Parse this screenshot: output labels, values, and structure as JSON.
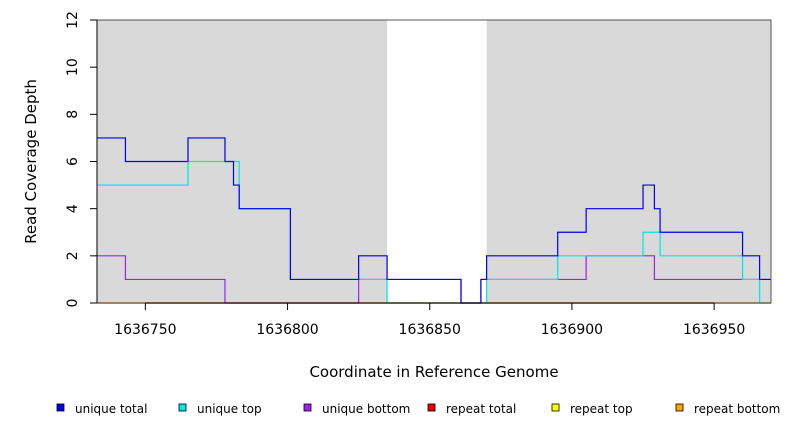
{
  "chart_data": {
    "type": "line",
    "step": true,
    "xlabel": "Coordinate in Reference Genome",
    "ylabel": "Read Coverage Depth",
    "xlim": [
      1636733,
      1636970
    ],
    "ylim": [
      0,
      12
    ],
    "x_ticks": [
      1636750,
      1636800,
      1636850,
      1636900,
      1636950
    ],
    "x_tick_labels": [
      "1636750",
      "1636800",
      "1636850",
      "1636900",
      "1636950"
    ],
    "y_ticks": [
      0,
      2,
      4,
      6,
      8,
      10,
      12
    ],
    "y_tick_labels": [
      "0",
      "2",
      "4",
      "6",
      "8",
      "10",
      "12"
    ],
    "shaded_regions": [
      {
        "x0": 1636733,
        "x1": 1636835
      },
      {
        "x0": 1636870,
        "x1": 1636970
      }
    ],
    "shade_color": "#d9d9d9",
    "grid": false,
    "legend_position": "bottom",
    "series": [
      {
        "name": "unique total",
        "color": "#0000ee",
        "x": [
          1636733,
          1636743,
          1636765,
          1636778,
          1636781,
          1636783,
          1636801,
          1636825,
          1636835,
          1636861,
          1636868,
          1636870,
          1636895,
          1636905,
          1636925,
          1636929,
          1636931,
          1636960,
          1636966,
          1636970
        ],
        "y": [
          7,
          6,
          7,
          6,
          5,
          4,
          1,
          2,
          1,
          0,
          1,
          2,
          3,
          4,
          5,
          4,
          3,
          2,
          1,
          1
        ]
      },
      {
        "name": "unique top",
        "color": "#00e5e5",
        "x": [
          1636733,
          1636765,
          1636783,
          1636801,
          1636835,
          1636870,
          1636895,
          1636925,
          1636931,
          1636960,
          1636966,
          1636970
        ],
        "y": [
          5,
          6,
          4,
          1,
          0,
          1,
          2,
          3,
          2,
          1,
          0,
          0
        ]
      },
      {
        "name": "unique bottom",
        "color": "#a020f0",
        "x": [
          1636733,
          1636743,
          1636778,
          1636825,
          1636835,
          1636861,
          1636868,
          1636905,
          1636929,
          1636970
        ],
        "y": [
          2,
          1,
          0,
          1,
          1,
          0,
          1,
          2,
          1,
          1
        ]
      },
      {
        "name": "repeat total",
        "color": "#ee0000",
        "x": [
          1636733,
          1636970
        ],
        "y": [
          0,
          0
        ]
      },
      {
        "name": "repeat top",
        "color": "#ffff00",
        "x": [
          1636733,
          1636970
        ],
        "y": [
          0,
          0
        ]
      },
      {
        "name": "repeat bottom",
        "color": "#ffa500",
        "x": [
          1636733,
          1636970
        ],
        "y": [
          0,
          0
        ]
      }
    ]
  }
}
